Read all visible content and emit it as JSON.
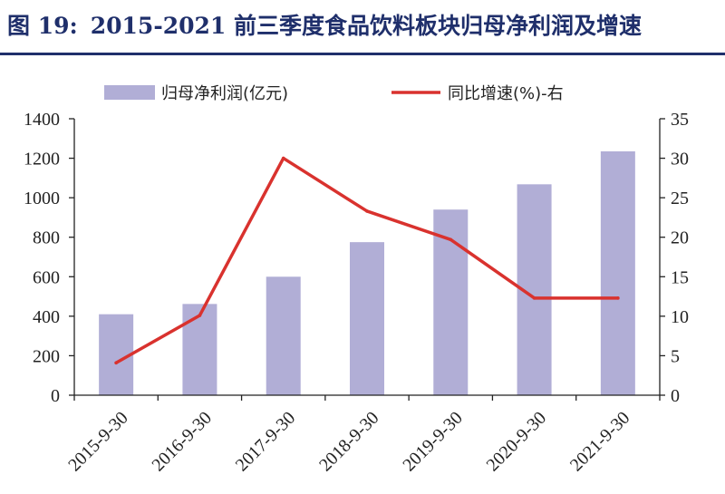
{
  "title": {
    "figure_label": "图 19:",
    "text": "2015-2021 前三季度食品饮料板块归母净利润及增速"
  },
  "chart_data": {
    "type": "bar",
    "categories": [
      "2015-9-30",
      "2016-9-30",
      "2017-9-30",
      "2018-9-30",
      "2019-9-30",
      "2020-9-30",
      "2021-9-30"
    ],
    "series": [
      {
        "name": "归母净利润(亿元)",
        "kind": "bar",
        "axis": "left",
        "color": "#b1aed6",
        "values": [
          410,
          462,
          600,
          775,
          940,
          1068,
          1235
        ]
      },
      {
        "name": "同比增速(%)-右",
        "kind": "line",
        "axis": "right",
        "color": "#d9322e",
        "values": [
          4.1,
          10.1,
          30.0,
          23.3,
          19.7,
          12.3,
          12.3
        ]
      }
    ],
    "ylim_left": [
      0,
      1400
    ],
    "yticks_left": [
      0,
      200,
      400,
      600,
      800,
      1000,
      1200,
      1400
    ],
    "ylim_right": [
      0,
      35
    ],
    "yticks_right": [
      0,
      5,
      10,
      15,
      20,
      25,
      30,
      35
    ],
    "grid": false,
    "legend_position": "top"
  }
}
